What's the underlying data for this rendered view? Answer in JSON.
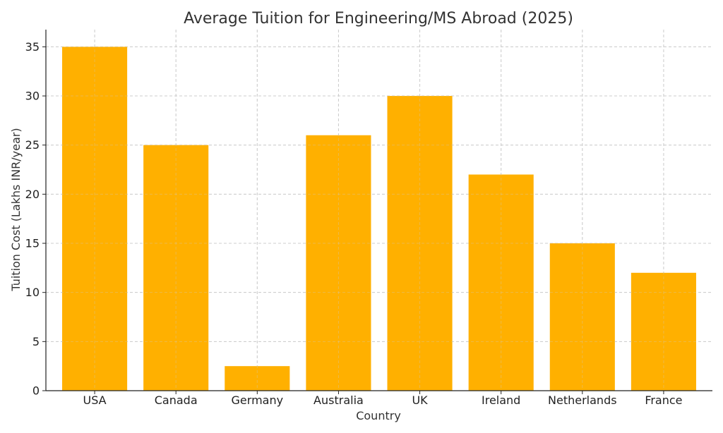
{
  "chart_data": {
    "type": "bar",
    "title": "Average Tuition for Engineering/MS Abroad (2025)",
    "xlabel": "Country",
    "ylabel": "Tuition Cost (Lakhs INR/year)",
    "categories": [
      "USA",
      "Canada",
      "Germany",
      "Australia",
      "UK",
      "Ireland",
      "Netherlands",
      "France"
    ],
    "values": [
      35,
      25,
      2.5,
      26,
      30,
      22,
      15,
      12
    ],
    "ylim": [
      0,
      36.75
    ],
    "yticks": [
      0,
      5,
      10,
      15,
      20,
      25,
      30,
      35
    ],
    "grid": true,
    "bar_color": "#FFB000"
  }
}
